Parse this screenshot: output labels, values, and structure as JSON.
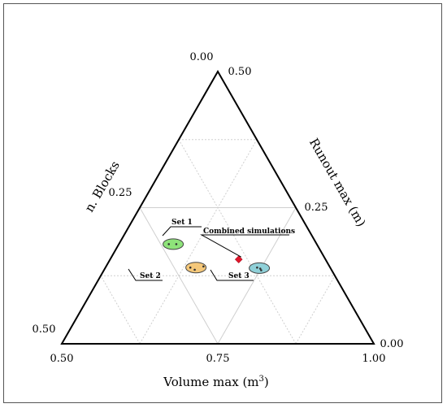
{
  "chart_data": {
    "type": "ternary",
    "axes": {
      "bottom": {
        "label": "Volume max (m",
        "label_sup": "3",
        "label_close": ")",
        "ticks": [
          "0.50",
          "0.75",
          "1.00"
        ],
        "range": [
          0.5,
          1.0
        ]
      },
      "left": {
        "label": "n. Blocks",
        "ticks": [
          "0.00",
          "0.25",
          "0.50"
        ],
        "range": [
          0.0,
          0.5
        ]
      },
      "right": {
        "label": "Runout max (m)",
        "ticks": [
          "0.50",
          "0.25",
          "0.00"
        ],
        "range": [
          0.0,
          0.5
        ]
      }
    },
    "grid": true,
    "groups": [
      {
        "name": "Set 1",
        "color": "#f5c87a",
        "center": {
          "a": 0.645,
          "b": 0.14
        },
        "points": [
          {
            "a": 0.636,
            "b": 0.14
          },
          {
            "a": 0.645,
            "b": 0.136
          },
          {
            "a": 0.656,
            "b": 0.142
          }
        ]
      },
      {
        "name": "Set 2",
        "color": "#8ee37a",
        "center": {
          "a": 0.587,
          "b": 0.183
        },
        "points": [
          {
            "a": 0.58,
            "b": 0.183
          },
          {
            "a": 0.592,
            "b": 0.183
          }
        ]
      },
      {
        "name": "Set 3",
        "color": "#8fd0d8",
        "center": {
          "a": 0.747,
          "b": 0.139
        },
        "points": [
          {
            "a": 0.743,
            "b": 0.14
          },
          {
            "a": 0.749,
            "b": 0.138
          },
          {
            "a": 0.752,
            "b": 0.135
          }
        ]
      }
    ],
    "combined": {
      "name": "Combined simulations",
      "color": "#e0162b",
      "a": 0.706,
      "b": 0.155
    }
  }
}
